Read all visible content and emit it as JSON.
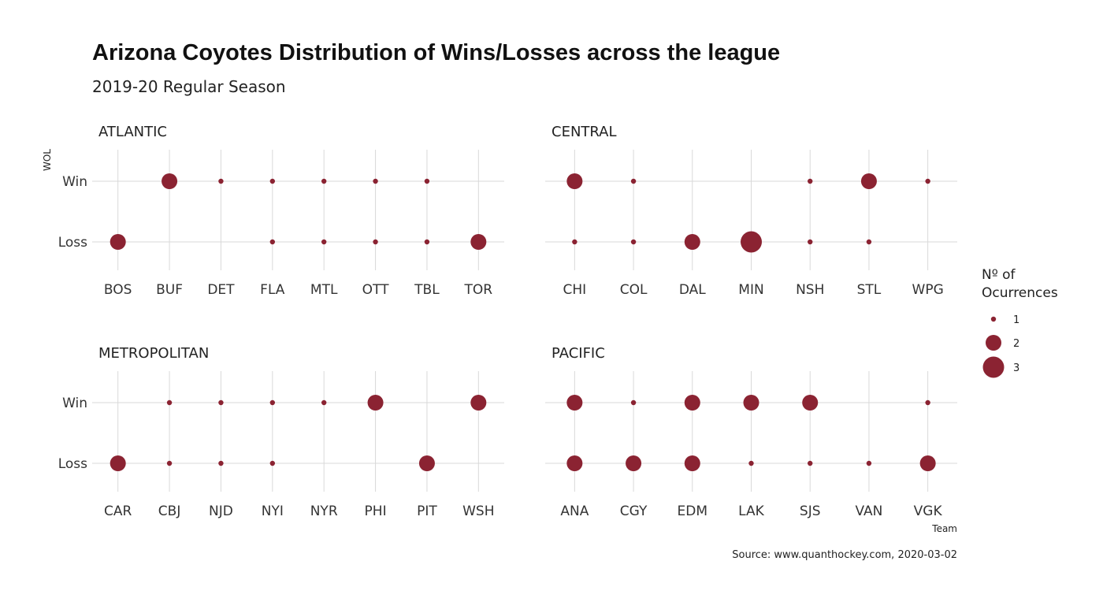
{
  "chart_data": {
    "type": "scatter",
    "title": "Arizona Coyotes Distribution of Wins/Losses across the league",
    "subtitle": "2019-20 Regular Season",
    "xlabel": "Team",
    "ylabel": "WOL",
    "y_categories": [
      "Win",
      "Loss"
    ],
    "caption": "Source: www.quanthockey.com, 2020-03-02",
    "point_color": "#8B2332",
    "legend": {
      "title_lines": [
        "Nº of",
        "Ocurrences"
      ],
      "entries": [
        {
          "label": "1",
          "size": 1
        },
        {
          "label": "2",
          "size": 2
        },
        {
          "label": "3",
          "size": 3
        }
      ],
      "placement": "right"
    },
    "grid": true,
    "facets": [
      {
        "name": "ATLANTIC",
        "teams": [
          "BOS",
          "BUF",
          "DET",
          "FLA",
          "MTL",
          "OTT",
          "TBL",
          "TOR"
        ],
        "points": [
          {
            "team": "BUF",
            "wol": "Win",
            "n": 2
          },
          {
            "team": "DET",
            "wol": "Win",
            "n": 1
          },
          {
            "team": "FLA",
            "wol": "Win",
            "n": 1
          },
          {
            "team": "MTL",
            "wol": "Win",
            "n": 1
          },
          {
            "team": "OTT",
            "wol": "Win",
            "n": 1
          },
          {
            "team": "TBL",
            "wol": "Win",
            "n": 1
          },
          {
            "team": "BOS",
            "wol": "Loss",
            "n": 2
          },
          {
            "team": "FLA",
            "wol": "Loss",
            "n": 1
          },
          {
            "team": "MTL",
            "wol": "Loss",
            "n": 1
          },
          {
            "team": "OTT",
            "wol": "Loss",
            "n": 1
          },
          {
            "team": "TBL",
            "wol": "Loss",
            "n": 1
          },
          {
            "team": "TOR",
            "wol": "Loss",
            "n": 2
          }
        ]
      },
      {
        "name": "CENTRAL",
        "teams": [
          "CHI",
          "COL",
          "DAL",
          "MIN",
          "NSH",
          "STL",
          "WPG"
        ],
        "points": [
          {
            "team": "CHI",
            "wol": "Win",
            "n": 2
          },
          {
            "team": "COL",
            "wol": "Win",
            "n": 1
          },
          {
            "team": "NSH",
            "wol": "Win",
            "n": 1
          },
          {
            "team": "STL",
            "wol": "Win",
            "n": 2
          },
          {
            "team": "WPG",
            "wol": "Win",
            "n": 1
          },
          {
            "team": "CHI",
            "wol": "Loss",
            "n": 1
          },
          {
            "team": "COL",
            "wol": "Loss",
            "n": 1
          },
          {
            "team": "DAL",
            "wol": "Loss",
            "n": 2
          },
          {
            "team": "MIN",
            "wol": "Loss",
            "n": 3
          },
          {
            "team": "NSH",
            "wol": "Loss",
            "n": 1
          },
          {
            "team": "STL",
            "wol": "Loss",
            "n": 1
          }
        ]
      },
      {
        "name": "METROPOLITAN",
        "teams": [
          "CAR",
          "CBJ",
          "NJD",
          "NYI",
          "NYR",
          "PHI",
          "PIT",
          "WSH"
        ],
        "points": [
          {
            "team": "CBJ",
            "wol": "Win",
            "n": 1
          },
          {
            "team": "NJD",
            "wol": "Win",
            "n": 1
          },
          {
            "team": "NYI",
            "wol": "Win",
            "n": 1
          },
          {
            "team": "NYR",
            "wol": "Win",
            "n": 1
          },
          {
            "team": "PHI",
            "wol": "Win",
            "n": 2
          },
          {
            "team": "WSH",
            "wol": "Win",
            "n": 2
          },
          {
            "team": "CAR",
            "wol": "Loss",
            "n": 2
          },
          {
            "team": "CBJ",
            "wol": "Loss",
            "n": 1
          },
          {
            "team": "NJD",
            "wol": "Loss",
            "n": 1
          },
          {
            "team": "NYI",
            "wol": "Loss",
            "n": 1
          },
          {
            "team": "PIT",
            "wol": "Loss",
            "n": 2
          }
        ]
      },
      {
        "name": "PACIFIC",
        "teams": [
          "ANA",
          "CGY",
          "EDM",
          "LAK",
          "SJS",
          "VAN",
          "VGK"
        ],
        "points": [
          {
            "team": "ANA",
            "wol": "Win",
            "n": 2
          },
          {
            "team": "CGY",
            "wol": "Win",
            "n": 1
          },
          {
            "team": "EDM",
            "wol": "Win",
            "n": 2
          },
          {
            "team": "LAK",
            "wol": "Win",
            "n": 2
          },
          {
            "team": "SJS",
            "wol": "Win",
            "n": 2
          },
          {
            "team": "VGK",
            "wol": "Win",
            "n": 1
          },
          {
            "team": "ANA",
            "wol": "Loss",
            "n": 2
          },
          {
            "team": "CGY",
            "wol": "Loss",
            "n": 2
          },
          {
            "team": "EDM",
            "wol": "Loss",
            "n": 2
          },
          {
            "team": "LAK",
            "wol": "Loss",
            "n": 1
          },
          {
            "team": "SJS",
            "wol": "Loss",
            "n": 1
          },
          {
            "team": "VAN",
            "wol": "Loss",
            "n": 1
          },
          {
            "team": "VGK",
            "wol": "Loss",
            "n": 2
          }
        ]
      }
    ]
  }
}
